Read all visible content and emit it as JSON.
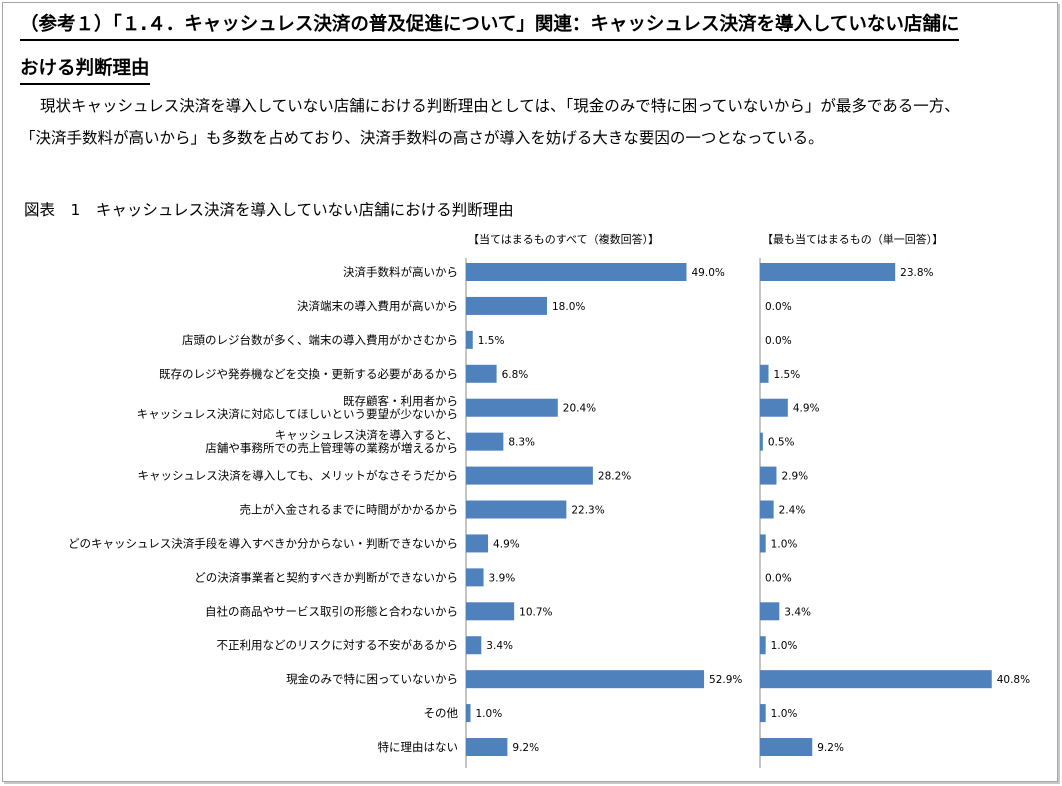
{
  "heading": {
    "line1": "（参考１）「１.４．キャッシュレス決済の普及促進について」関連：キャッシュレス決済を導入していない店舗に",
    "line2": "おける判断理由"
  },
  "paragraph": {
    "line1": "現状キャッシュレス決済を導入していない店舗における判断理由としては、「現金のみで特に困っていないから」が最多である一方、",
    "line2": "「決済手数料が高いから」も多数を占めており、決済手数料の高さが導入を妨げる大きな要因の一つとなっている。"
  },
  "figure": {
    "title": "図表　1　キャッシュレス決済を導入していない店舗における判断理由"
  },
  "colors": {
    "bar": "#4f81bd",
    "axis": "#888888"
  },
  "chart_data": {
    "type": "bar",
    "orientation": "horizontal",
    "title": "図表　1　キャッシュレス決済を導入していない店舗における判断理由",
    "categories": [
      [
        "決済手数料が高いから"
      ],
      [
        "決済端末の導入費用が高いから"
      ],
      [
        "店頭のレジ台数が多く、端末の導入費用がかさむから"
      ],
      [
        "既存のレジや発券機などを交換・更新する必要があるから"
      ],
      [
        "既存顧客・利用者から",
        "キャッシュレス決済に対応してほしいという要望が少ないから"
      ],
      [
        "キャッシュレス決済を導入すると、",
        "店舗や事務所での売上管理等の業務が増えるから"
      ],
      [
        "キャッシュレス決済を導入しても、メリットがなさそうだから"
      ],
      [
        "売上が入金されるまでに時間がかかるから"
      ],
      [
        "どのキャッシュレス決済手段を導入すべきか分からない・判断できないから"
      ],
      [
        "どの決済事業者と契約すべきか判断ができないから"
      ],
      [
        "自社の商品やサービス取引の形態と合わないから"
      ],
      [
        "不正利用などのリスクに対する不安があるから"
      ],
      [
        "現金のみで特に困っていないから"
      ],
      [
        "その他"
      ],
      [
        "特に理由はない"
      ]
    ],
    "series": [
      {
        "name": "【当てはまるものすべて（複数回答）】",
        "values": [
          49.0,
          18.0,
          1.5,
          6.8,
          20.4,
          8.3,
          28.2,
          22.3,
          4.9,
          3.9,
          10.7,
          3.4,
          52.9,
          1.0,
          9.2
        ],
        "labels": [
          "49.0%",
          "18.0%",
          "1.5%",
          "6.8%",
          "20.4%",
          "8.3%",
          "28.2%",
          "22.3%",
          "4.9%",
          "3.9%",
          "10.7%",
          "3.4%",
          "52.9%",
          "1.0%",
          "9.2%"
        ]
      },
      {
        "name": "【最も当てはまるもの（単一回答）】",
        "values": [
          23.8,
          0.0,
          0.0,
          1.5,
          4.9,
          0.5,
          2.9,
          2.4,
          1.0,
          0.0,
          3.4,
          1.0,
          40.8,
          1.0,
          9.2
        ],
        "labels": [
          "23.8%",
          "0.0%",
          "0.0%",
          "1.5%",
          "4.9%",
          "0.5%",
          "2.9%",
          "2.4%",
          "1.0%",
          "0.0%",
          "3.4%",
          "1.0%",
          "40.8%",
          "1.0%",
          "9.2%"
        ]
      }
    ],
    "unit": "%",
    "grid": false,
    "legend": "none"
  }
}
